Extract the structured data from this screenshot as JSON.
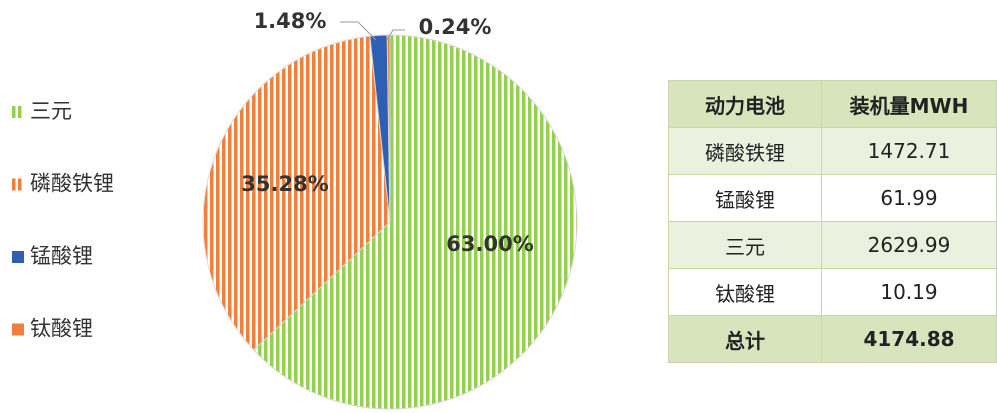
{
  "chart_data": {
    "type": "pie",
    "categories": [
      "三元",
      "磷酸铁锂",
      "锰酸锂",
      "钛酸锂"
    ],
    "values": [
      63.0,
      35.28,
      1.48,
      0.24
    ],
    "value_labels": [
      "63.00%",
      "35.28%",
      "1.48%",
      "0.24%"
    ],
    "colors": [
      "#92d050",
      "#f07f3c",
      "#2f5fb3",
      "#f07f3c"
    ],
    "legend": "left"
  },
  "table": {
    "header": [
      "动力电池",
      "装机量MWH"
    ],
    "rows": [
      [
        "磷酸铁锂",
        "1472.71"
      ],
      [
        "锰酸锂",
        "61.99"
      ],
      [
        "三元",
        "2629.99"
      ],
      [
        "钛酸锂",
        "10.19"
      ]
    ],
    "total": [
      "总计",
      "4174.88"
    ]
  }
}
